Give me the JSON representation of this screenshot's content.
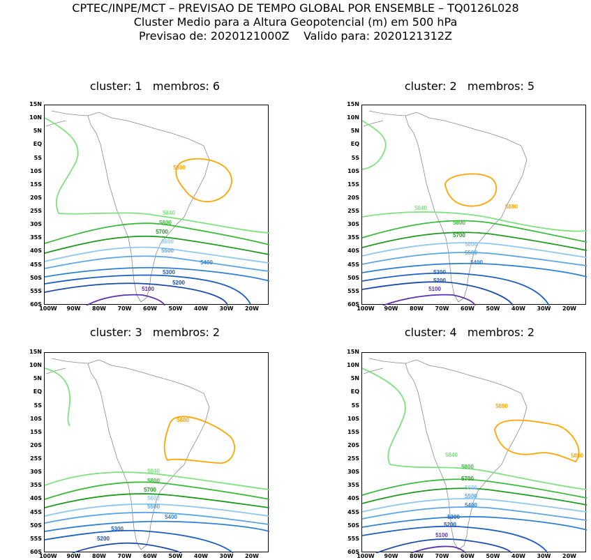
{
  "header": {
    "line1": "CPTEC/INPE/MCT – PREVISAO DE TEMPO GLOBAL POR ENSEMBLE – TQ0126L028",
    "line2": "Cluster Medio para a Altura Geopotencial (m) em 500 hPa",
    "line3": "Previsao de: 2020121000Z    Valido para: 2020121312Z"
  },
  "axes": {
    "lat_labels": [
      "15N",
      "10N",
      "5N",
      "EQ",
      "5S",
      "10S",
      "15S",
      "20S",
      "25S",
      "30S",
      "35S",
      "40S",
      "45S",
      "50S",
      "55S",
      "60S"
    ],
    "lon_labels": [
      "100W",
      "90W",
      "80W",
      "70W",
      "60W",
      "50W",
      "40W",
      "30W",
      "20W"
    ]
  },
  "panels": [
    {
      "title": "cluster: 1   membros: 6",
      "contours": [
        "5880",
        "5840",
        "5800",
        "5700",
        "5600",
        "5500",
        "5400",
        "5300",
        "5200",
        "5100"
      ]
    },
    {
      "title": "cluster: 2   membros: 5",
      "contours": [
        "5880",
        "5840",
        "5800",
        "5700",
        "5600",
        "5500",
        "5400",
        "5300",
        "5200",
        "5100"
      ]
    },
    {
      "title": "cluster: 3   membros: 2",
      "contours": [
        "5880",
        "5840",
        "5800",
        "5700",
        "5600",
        "5500",
        "5400",
        "5300",
        "5200"
      ]
    },
    {
      "title": "cluster: 4   membros: 2",
      "contours": [
        "5880",
        "5880",
        "5840",
        "5800",
        "5700",
        "5600",
        "5500",
        "5400",
        "5300",
        "5200",
        "5100"
      ]
    }
  ],
  "colors": {
    "c5880": "#ffa500",
    "c5840": "#7ee07e",
    "c5800": "#3cba3c",
    "c5700": "#1e9a1e",
    "c5600": "#8ec7f0",
    "c5500": "#5aa5e6",
    "c5400": "#2e7fd6",
    "c5300": "#1d5fc0",
    "c5200": "#1a4aa8",
    "c5100": "#5a2fb0"
  }
}
